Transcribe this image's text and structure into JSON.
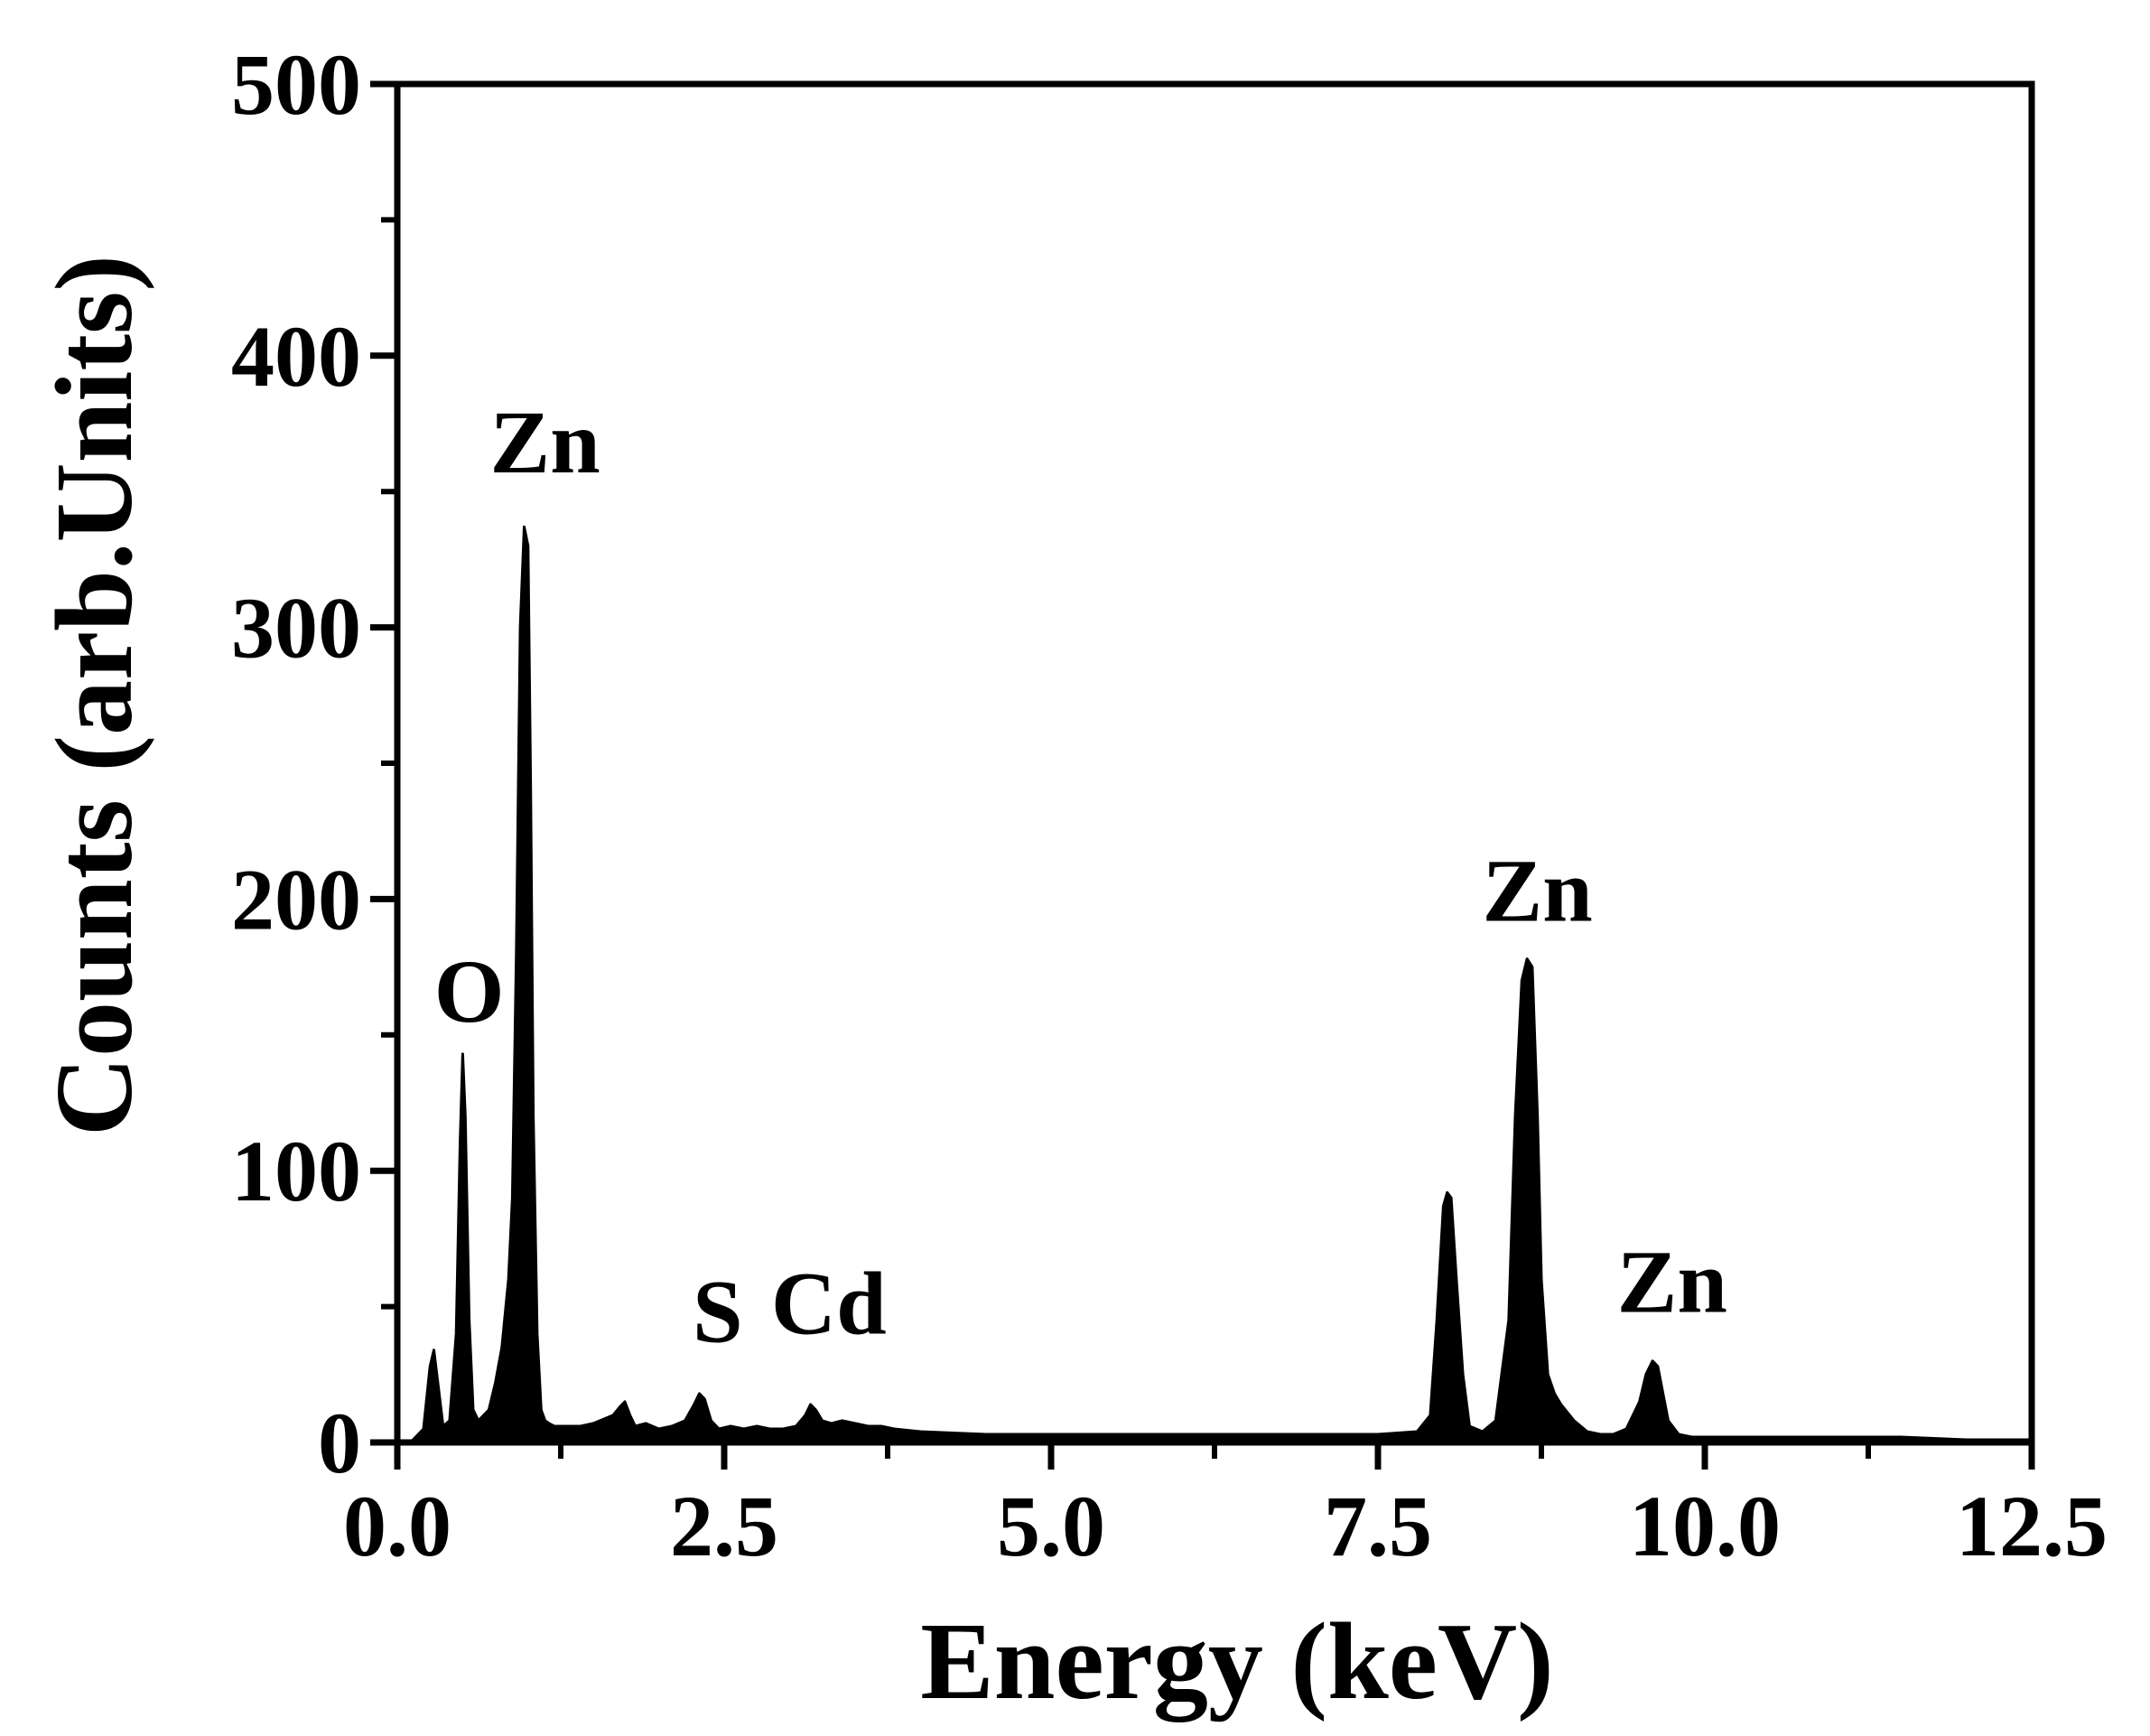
{
  "chart_data": {
    "type": "area",
    "xlabel": "Energy (keV)",
    "ylabel": "Counts (arb.Units)",
    "xlim": [
      0,
      12.5
    ],
    "ylim": [
      0,
      500
    ],
    "xticks": [
      0,
      2.5,
      5,
      7.5,
      10,
      12.5
    ],
    "xtick_labels": [
      "0.0",
      "2.5",
      "5.0",
      "7.5",
      "10.0",
      "12.5"
    ],
    "yticks": [
      0,
      100,
      200,
      300,
      400,
      500
    ],
    "ytick_labels": [
      "0",
      "100",
      "200",
      "300",
      "400",
      "500"
    ],
    "grid": false,
    "fill_color": "#000000",
    "series": [
      {
        "x": [
          0.1,
          0.2,
          0.25,
          0.28,
          0.31,
          0.35,
          0.4,
          0.45,
          0.48,
          0.5,
          0.52,
          0.55,
          0.58,
          0.62,
          0.66,
          0.7,
          0.75,
          0.8,
          0.85,
          0.88,
          0.91,
          0.94,
          0.97,
          1.0,
          1.02,
          1.04,
          1.07,
          1.1,
          1.13,
          1.16,
          1.2,
          1.3,
          1.4,
          1.5,
          1.6,
          1.65,
          1.7,
          1.74,
          1.78,
          1.82,
          1.9,
          2.0,
          2.1,
          2.2,
          2.27,
          2.31,
          2.35,
          2.4,
          2.46,
          2.55,
          2.65,
          2.75,
          2.85,
          2.95,
          3.05,
          3.12,
          3.16,
          3.2,
          3.25,
          3.32,
          3.4,
          3.5,
          3.6,
          3.7,
          3.8,
          4.0,
          4.5,
          5.0,
          5.5,
          6.0,
          6.5,
          7.0,
          7.5,
          7.8,
          7.9,
          7.95,
          8.0,
          8.03,
          8.06,
          8.1,
          8.15,
          8.2,
          8.3,
          8.4,
          8.5,
          8.55,
          8.6,
          8.64,
          8.68,
          8.72,
          8.75,
          8.8,
          8.85,
          8.9,
          9.0,
          9.1,
          9.2,
          9.3,
          9.4,
          9.5,
          9.55,
          9.6,
          9.64,
          9.68,
          9.72,
          9.8,
          9.9,
          10.0,
          10.5,
          11.0,
          11.5,
          12.0,
          12.5
        ],
        "y": [
          0,
          5,
          28,
          34,
          22,
          6,
          8,
          40,
          110,
          143,
          120,
          45,
          12,
          8,
          10,
          12,
          22,
          35,
          60,
          90,
          180,
          300,
          337,
          330,
          240,
          120,
          40,
          12,
          8,
          7,
          6,
          6,
          6,
          7,
          9,
          10,
          13,
          15,
          10,
          6,
          7,
          5,
          6,
          8,
          14,
          18,
          16,
          8,
          5,
          6,
          5,
          6,
          5,
          5,
          6,
          10,
          14,
          12,
          8,
          7,
          8,
          7,
          6,
          6,
          5,
          4,
          3,
          3,
          3,
          3,
          3,
          3,
          3,
          4,
          10,
          45,
          87,
          92,
          90,
          60,
          25,
          6,
          4,
          8,
          45,
          120,
          170,
          178,
          175,
          120,
          60,
          25,
          18,
          14,
          8,
          4,
          3,
          3,
          5,
          15,
          25,
          30,
          28,
          18,
          8,
          3,
          2,
          2,
          2,
          2,
          2,
          1,
          1
        ]
      }
    ],
    "annotations": [
      {
        "text": "O",
        "x": 0.55,
        "y": 155
      },
      {
        "text": "Zn",
        "x": 1.13,
        "y": 357
      },
      {
        "text": "S",
        "x": 2.45,
        "y": 37
      },
      {
        "text": "Cd",
        "x": 3.3,
        "y": 40
      },
      {
        "text": "Zn",
        "x": 8.72,
        "y": 192
      },
      {
        "text": "Zn",
        "x": 9.75,
        "y": 48
      }
    ]
  }
}
